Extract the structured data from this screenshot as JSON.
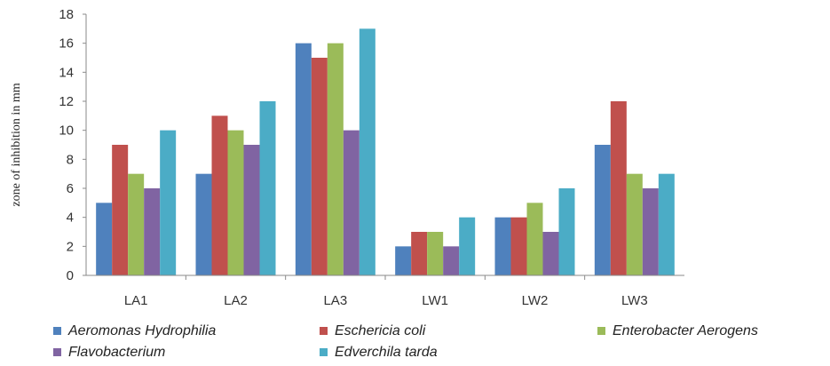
{
  "chart_data": {
    "type": "bar",
    "title": "",
    "xlabel": "",
    "ylabel": "zone of inhibition in mm",
    "ylim": [
      0,
      18
    ],
    "yticks": [
      0,
      2,
      4,
      6,
      8,
      10,
      12,
      14,
      16,
      18
    ],
    "grid": false,
    "legend_position": "bottom",
    "categories": [
      "LA1",
      "LA2",
      "LA3",
      "LW1",
      "LW2",
      "LW3"
    ],
    "series": [
      {
        "name": "Aeromonas Hydrophilia",
        "color": "#4f81bd",
        "values": [
          5,
          7,
          16,
          2,
          4,
          9
        ]
      },
      {
        "name": "Eschericia coli",
        "color": "#c0504d",
        "values": [
          9,
          11,
          15,
          3,
          4,
          12
        ]
      },
      {
        "name": "Enterobacter Aerogens",
        "color": "#9bbb59",
        "values": [
          7,
          10,
          16,
          3,
          5,
          7
        ]
      },
      {
        "name": "Flavobacterium",
        "color": "#8064a2",
        "values": [
          6,
          9,
          10,
          2,
          3,
          6
        ]
      },
      {
        "name": "Edverchila tarda",
        "color": "#4bacc6",
        "values": [
          10,
          12,
          17,
          4,
          6,
          7
        ]
      }
    ]
  }
}
